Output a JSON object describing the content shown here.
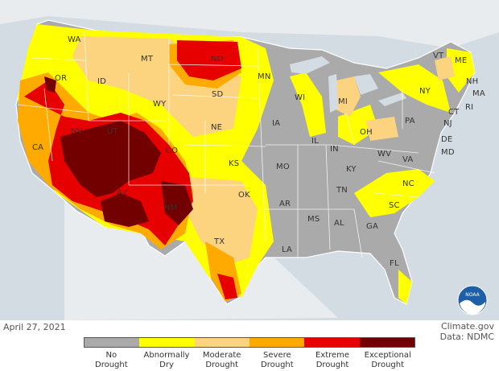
{
  "map": {
    "date": "April 27, 2021",
    "credit_line1": "Climate.gov",
    "credit_line2": "Data: NDMC",
    "logo_text": "NOAA",
    "state_labels": [
      "WA",
      "OR",
      "CA",
      "NV",
      "ID",
      "MT",
      "WY",
      "UT",
      "AZ",
      "CO",
      "NM",
      "ND",
      "SD",
      "NE",
      "KS",
      "OK",
      "TX",
      "MN",
      "IA",
      "MO",
      "AR",
      "LA",
      "WI",
      "IL",
      "MI",
      "IN",
      "OH",
      "KY",
      "TN",
      "MS",
      "AL",
      "GA",
      "FL",
      "SC",
      "NC",
      "VA",
      "WV",
      "PA",
      "NY",
      "VT",
      "NH",
      "ME",
      "MA",
      "CT",
      "RI",
      "NJ",
      "DE",
      "MD"
    ]
  },
  "legend": {
    "categories": [
      {
        "label": "No\nDrought",
        "color": "#aaaaaa"
      },
      {
        "label": "Abnormally\nDry",
        "color": "#ffff00"
      },
      {
        "label": "Moderate\nDrought",
        "color": "#fcd37f"
      },
      {
        "label": "Severe\nDrought",
        "color": "#ffaa00"
      },
      {
        "label": "Extreme\nDrought",
        "color": "#e60000"
      },
      {
        "label": "Exceptional\nDrought",
        "color": "#730000"
      }
    ]
  }
}
